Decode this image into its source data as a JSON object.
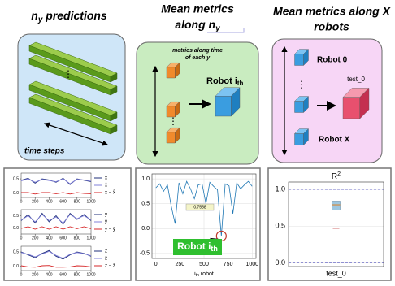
{
  "panels": [
    {
      "title": {
        "main": "n",
        "sub": "y",
        "rest": " predictions"
      },
      "label": "time steps"
    },
    {
      "title": {
        "line1": "Mean metrics",
        "main": "along n",
        "sub": "y"
      },
      "note": [
        "metrics along time",
        "of each y"
      ],
      "robot": {
        "main": "Robot i",
        "sub": "th"
      }
    },
    {
      "title": [
        "Mean metrics along X",
        "robots"
      ],
      "labels": [
        "Robot 0",
        "Robot X"
      ],
      "output": "test_0"
    }
  ],
  "chart_data": [
    {
      "type": "multi-line",
      "x": [
        0,
        100,
        200,
        300,
        400,
        500,
        600,
        700,
        800,
        900,
        1000
      ],
      "xlim": [
        0,
        1000
      ],
      "xticks": [
        0,
        200,
        400,
        600,
        800,
        1000
      ],
      "subplots": [
        {
          "ylim": [
            -0.15,
            0.7
          ],
          "yticks": [
            {
              "value": 0,
              "label": "0.0"
            },
            0.5
          ],
          "series": [
            {
              "name": "x",
              "color": "#1f2f7a",
              "values": [
                0.45,
                0.52,
                0.35,
                0.5,
                0.46,
                0.38,
                0.52,
                0.3,
                0.5,
                0.45,
                0.4
              ]
            },
            {
              "name": "x̂",
              "color": "#8080d8",
              "values": [
                0.43,
                0.5,
                0.38,
                0.48,
                0.44,
                0.4,
                0.5,
                0.33,
                0.48,
                0.46,
                0.42
              ]
            },
            {
              "name": "x − x̂",
              "color": "#d62728",
              "values": [
                0.02,
                0.02,
                -0.03,
                0.02,
                0.02,
                -0.02,
                0.02,
                -0.03,
                0.02,
                -0.01,
                -0.02
              ]
            }
          ]
        },
        {
          "ylim": [
            -0.25,
            0.75
          ],
          "yticks": [
            {
              "value": 0,
              "label": "0.0"
            },
            0.5
          ],
          "series": [
            {
              "name": "y",
              "color": "#1f2f7a",
              "values": [
                0.3,
                0.55,
                0.2,
                0.6,
                0.25,
                0.5,
                0.15,
                0.6,
                0.35,
                0.55,
                0.3
              ]
            },
            {
              "name": "ŷ",
              "color": "#8080d8",
              "values": [
                0.32,
                0.5,
                0.25,
                0.55,
                0.3,
                0.45,
                0.2,
                0.55,
                0.38,
                0.5,
                0.33
              ]
            },
            {
              "name": "y − ŷ",
              "color": "#d62728",
              "values": [
                -0.02,
                0.05,
                -0.05,
                0.05,
                -0.05,
                0.05,
                -0.05,
                0.05,
                -0.03,
                0.05,
                -0.03
              ]
            }
          ]
        },
        {
          "ylim": [
            -0.15,
            0.7
          ],
          "yticks": [
            {
              "value": 0,
              "label": "0.0"
            },
            0.5
          ],
          "series": [
            {
              "name": "z",
              "color": "#1f2f7a",
              "values": [
                0.5,
                0.4,
                0.3,
                0.45,
                0.55,
                0.35,
                0.25,
                0.4,
                0.5,
                0.45,
                0.35
              ]
            },
            {
              "name": "ẑ",
              "color": "#8080d8",
              "values": [
                0.48,
                0.42,
                0.33,
                0.43,
                0.52,
                0.38,
                0.28,
                0.42,
                0.48,
                0.44,
                0.37
              ]
            },
            {
              "name": "z − ẑ",
              "color": "#d62728",
              "values": [
                0.02,
                -0.02,
                -0.03,
                0.02,
                0.03,
                -0.03,
                -0.03,
                -0.02,
                0.02,
                0.01,
                -0.02
              ]
            }
          ]
        }
      ]
    },
    {
      "type": "line",
      "x": [
        0,
        40,
        80,
        120,
        160,
        200,
        240,
        280,
        320,
        360,
        400,
        440,
        480,
        520,
        560,
        600,
        640,
        680,
        720,
        760,
        800,
        840,
        880,
        920,
        960,
        1000
      ],
      "values": [
        0.82,
        0.9,
        0.75,
        0.88,
        0.45,
        0.1,
        0.92,
        0.7,
        0.95,
        0.8,
        0.6,
        0.88,
        0.9,
        0.5,
        0.93,
        0.85,
        0.78,
        -0.15,
        0.9,
        0.86,
        0.3,
        0.92,
        0.8,
        0.88,
        0.95,
        0.85
      ],
      "color": "#1f77b4",
      "xlim": [
        -40,
        1040
      ],
      "ylim": [
        -0.6,
        1.1
      ],
      "xticks": [
        0,
        250,
        500,
        750,
        1000
      ],
      "yticks": [
        -0.5,
        {
          "value": 0,
          "label": "0.0"
        },
        0.5,
        {
          "value": 1,
          "label": "1.0"
        }
      ],
      "xlabel": {
        "main": "i",
        "sub": "th",
        "rest": " robot"
      },
      "mean": 0.7558,
      "annotation": {
        "main": "Robot i",
        "sub": "th"
      },
      "grid": true
    },
    {
      "type": "box",
      "title": {
        "main": "R",
        "sup": "2"
      },
      "categories": [
        "test_0"
      ],
      "boxes": [
        {
          "min": 0.47,
          "q1": 0.72,
          "median": 0.79,
          "q3": 0.84,
          "max": 0.95
        }
      ],
      "color": "#9ec7e0",
      "ylim": [
        -0.05,
        1.1
      ],
      "yticks": [
        {
          "value": 0,
          "label": "0.0"
        },
        0.5,
        {
          "value": 1,
          "label": "1.0"
        }
      ],
      "ref_lines": [
        1,
        0
      ],
      "grid": true
    }
  ]
}
